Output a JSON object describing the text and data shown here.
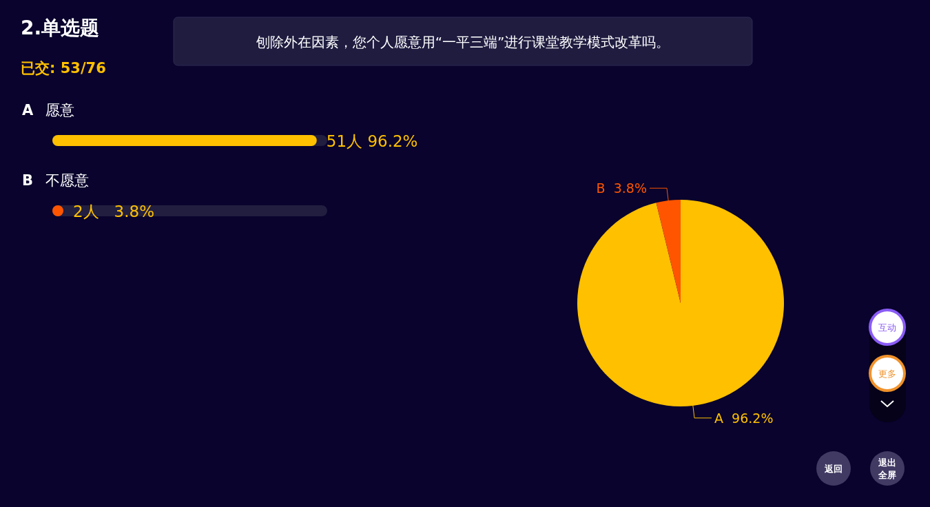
{
  "chart_data": [
    {
      "type": "bar",
      "orientation": "horizontal",
      "title": "2.单选题",
      "subtitle": "已交: 53/76",
      "annotations": [
        "刨除外在因素，您个人愿意用“一平三端”进行课堂教学模式改革吗。"
      ],
      "categories": [
        "A 愿意",
        "B 不愿意"
      ],
      "values": [
        96.2,
        3.8
      ],
      "colors": [
        "#ffc000",
        "#ff5500"
      ],
      "value_labels": [
        "51人 96.2%",
        "2人   3.8%"
      ],
      "xlim": [
        0,
        100
      ]
    },
    {
      "type": "pie",
      "categories": [
        "A",
        "B"
      ],
      "values": [
        96.2,
        3.8
      ],
      "colors": [
        "#ffc000",
        "#ff5500"
      ],
      "value_labels": [
        "96.2%",
        "3.8%"
      ]
    },
    {
      "type": "other",
      "annotations": [
        "互动",
        "更多",
        "返回",
        "退出",
        "全屏"
      ]
    }
  ]
}
